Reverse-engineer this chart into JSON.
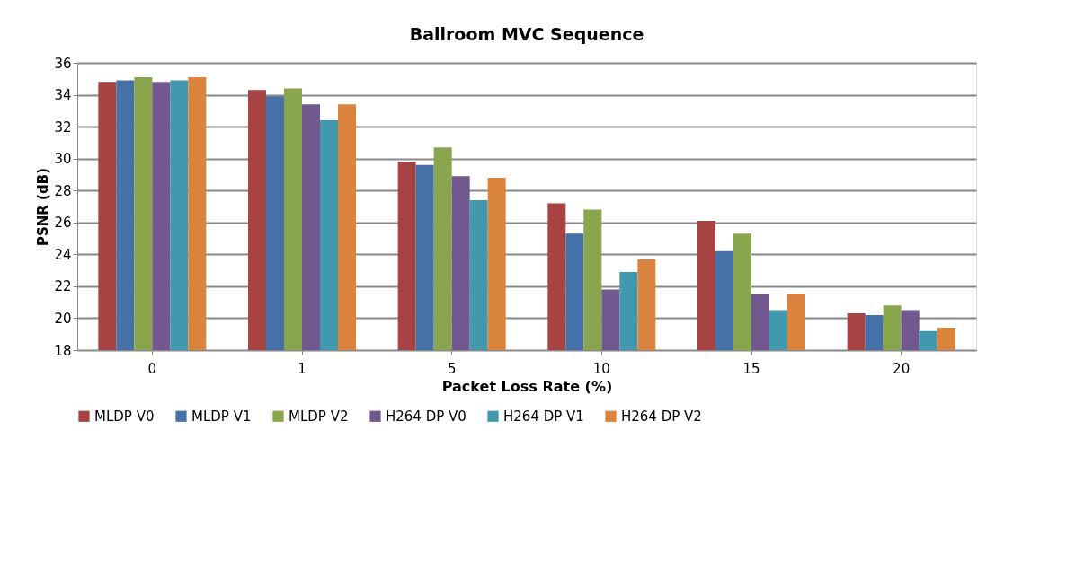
{
  "chart_data": {
    "type": "bar",
    "title": "Ballroom MVC Sequence",
    "xlabel": "Packet Loss Rate (%)",
    "ylabel": "PSNR (dB)",
    "categories": [
      "0",
      "1",
      "5",
      "10",
      "15",
      "20"
    ],
    "series": [
      {
        "name": "MLDP V0",
        "color": "#a84343",
        "values": [
          34.8,
          34.3,
          29.8,
          27.2,
          26.1,
          20.3
        ]
      },
      {
        "name": "MLDP V1",
        "color": "#4571a8",
        "values": [
          34.9,
          33.9,
          29.6,
          25.3,
          24.2,
          20.2
        ]
      },
      {
        "name": "MLDP V2",
        "color": "#89a54e",
        "values": [
          35.1,
          34.4,
          30.7,
          26.8,
          25.3,
          20.8
        ]
      },
      {
        "name": "H264 DP V0",
        "color": "#71588f",
        "values": [
          34.8,
          33.4,
          28.9,
          21.8,
          21.5,
          20.5
        ]
      },
      {
        "name": "H264 DP V1",
        "color": "#4198af",
        "values": [
          34.9,
          32.4,
          27.4,
          22.9,
          20.5,
          19.2
        ]
      },
      {
        "name": "H264 DP V2",
        "color": "#db843d",
        "values": [
          35.1,
          33.4,
          28.8,
          23.7,
          21.5,
          19.4
        ]
      }
    ],
    "ylim": [
      18,
      36
    ],
    "yticks": [
      18,
      20,
      22,
      24,
      26,
      28,
      30,
      32,
      34,
      36
    ],
    "grid": "y",
    "legend": "bottom"
  }
}
